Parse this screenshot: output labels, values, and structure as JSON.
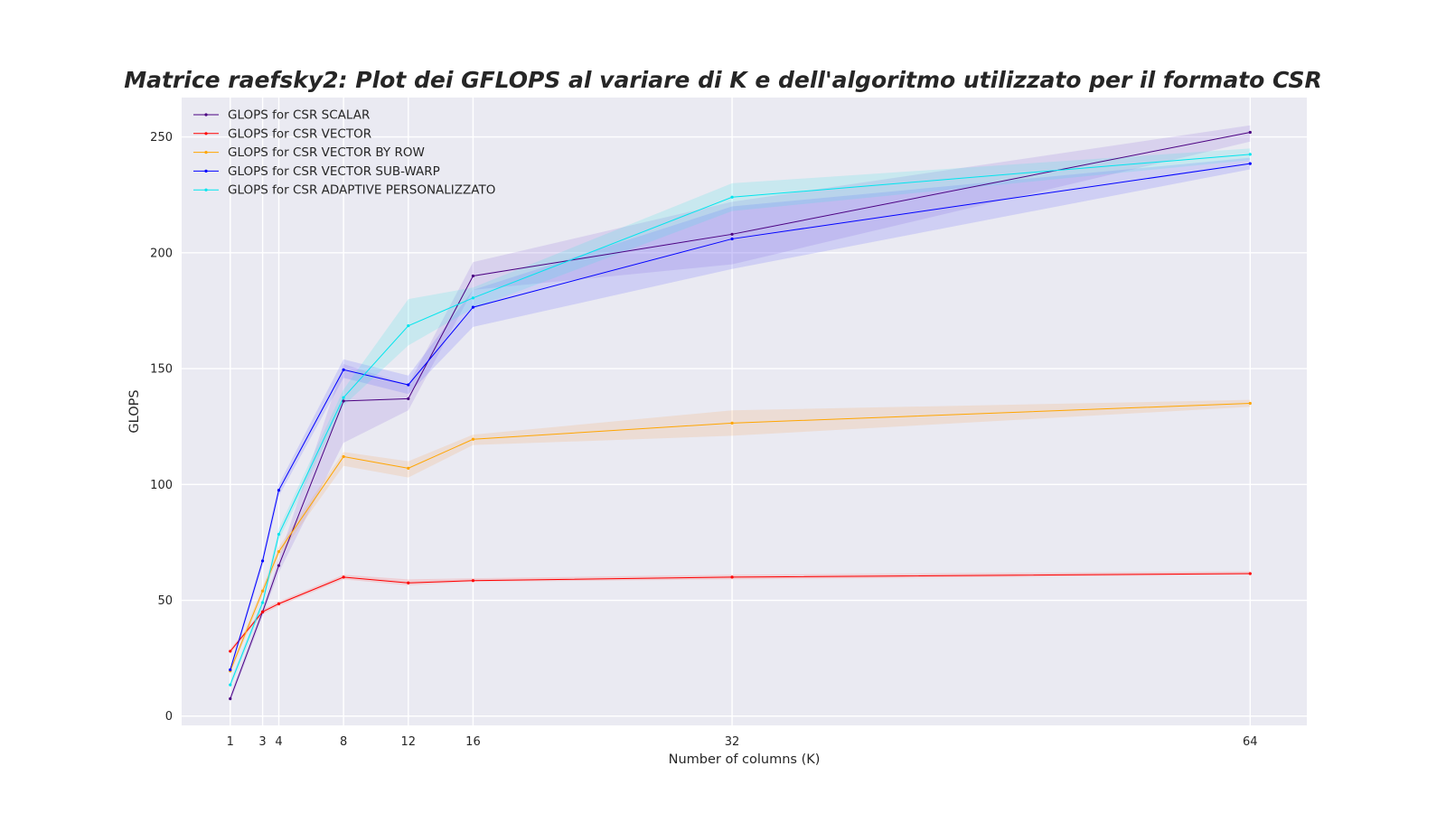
{
  "chart_data": {
    "type": "line",
    "title": "Matrice raefsky2: Plot dei GFLOPS al variare di K e dell'algoritmo utilizzato per il formato CSR",
    "xlabel": "Number of columns (K)",
    "ylabel": "GLOPS",
    "x": [
      1,
      3,
      4,
      8,
      12,
      16,
      32,
      64
    ],
    "x_ticks": [
      "1",
      "3",
      "4",
      "8",
      "12",
      "16",
      "32",
      "64"
    ],
    "y_ticks": [
      "0",
      "50",
      "100",
      "150",
      "200",
      "250"
    ],
    "xlim": [
      -2,
      67.5
    ],
    "ylim": [
      -4,
      267
    ],
    "grid": true,
    "legend_position": "top-left",
    "series": [
      {
        "name": "GLOPS for CSR SCALAR",
        "color": "#4b0082",
        "band_color": "#9370db",
        "values": [
          7.5,
          45,
          65,
          136,
          137,
          190,
          208,
          252
        ],
        "lower": [
          6,
          43,
          62,
          118,
          132,
          184,
          195,
          248
        ],
        "upper": [
          9,
          47,
          68,
          152,
          143,
          196,
          222,
          255
        ]
      },
      {
        "name": "GLOPS for CSR VECTOR",
        "color": "#ff0000",
        "band_color": "#ff6060",
        "values": [
          28,
          45,
          48.5,
          60,
          57.5,
          58.5,
          60,
          61.5
        ],
        "lower": [
          27,
          44,
          47.5,
          59,
          56.5,
          58,
          59,
          61
        ],
        "upper": [
          29,
          46,
          49.5,
          61,
          59,
          59.5,
          61,
          62.5
        ]
      },
      {
        "name": "GLOPS for CSR VECTOR BY ROW",
        "color": "#ffa500",
        "band_color": "#f4a460",
        "values": [
          19.5,
          54,
          71,
          112,
          107,
          119.5,
          126.5,
          135
        ],
        "lower": [
          18,
          52,
          69,
          108,
          103,
          117,
          121,
          133.5
        ],
        "upper": [
          21,
          56,
          73,
          114,
          110,
          121.5,
          132,
          136.5
        ]
      },
      {
        "name": "GLOPS for CSR VECTOR SUB-WARP",
        "color": "#0000ff",
        "band_color": "#6464ff",
        "values": [
          20,
          67,
          97.5,
          149.5,
          143,
          176.5,
          206,
          238.5
        ],
        "lower": [
          19,
          65,
          95,
          146,
          139,
          168,
          193,
          236
        ],
        "upper": [
          21,
          69,
          100,
          154,
          147,
          184,
          220,
          241
        ]
      },
      {
        "name": "GLOPS for CSR ADAPTIVE PERSONALIZZATO",
        "color": "#00e5ee",
        "band_color": "#40e0e8",
        "values": [
          13.5,
          49,
          78.5,
          137.5,
          168.5,
          180.5,
          224,
          242.5
        ],
        "lower": [
          12,
          47,
          76,
          134,
          160,
          176,
          218,
          240
        ],
        "upper": [
          15,
          51,
          81,
          141,
          180,
          185,
          230,
          245
        ]
      }
    ]
  }
}
